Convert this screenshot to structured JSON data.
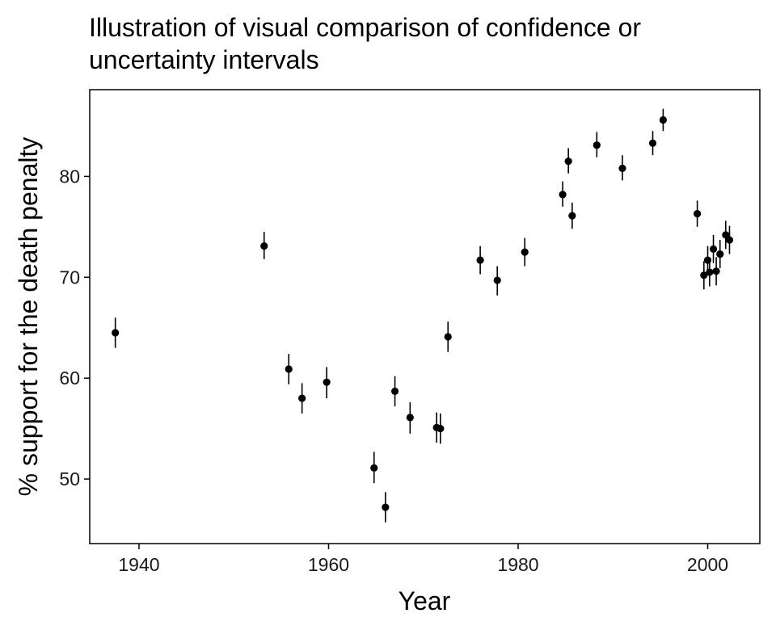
{
  "chart_data": {
    "type": "scatter",
    "title_lines": [
      "Illustration of visual comparison of confidence or",
      "uncertainty intervals"
    ],
    "xlabel": "Year",
    "ylabel": "% support for the death penalty",
    "x_ticks": [
      1940,
      1960,
      1980,
      2000
    ],
    "y_ticks": [
      50,
      60,
      70,
      80
    ],
    "xlim": [
      1934.8,
      2005.5
    ],
    "ylim": [
      43.6,
      88.6
    ],
    "grid": false,
    "error_bars": true,
    "point_color": "#000000",
    "points": [
      {
        "x": 1937.5,
        "y": 64.5,
        "lo": 63.0,
        "hi": 66.0
      },
      {
        "x": 1953.2,
        "y": 73.1,
        "lo": 71.8,
        "hi": 74.5
      },
      {
        "x": 1955.8,
        "y": 60.9,
        "lo": 59.4,
        "hi": 62.4
      },
      {
        "x": 1957.2,
        "y": 58.0,
        "lo": 56.5,
        "hi": 59.5
      },
      {
        "x": 1959.8,
        "y": 59.6,
        "lo": 58.0,
        "hi": 61.1
      },
      {
        "x": 1964.8,
        "y": 51.1,
        "lo": 49.6,
        "hi": 52.7
      },
      {
        "x": 1966.0,
        "y": 47.2,
        "lo": 45.7,
        "hi": 48.7
      },
      {
        "x": 1967.0,
        "y": 58.7,
        "lo": 57.2,
        "hi": 60.2
      },
      {
        "x": 1968.6,
        "y": 56.1,
        "lo": 54.5,
        "hi": 57.6
      },
      {
        "x": 1971.4,
        "y": 55.1,
        "lo": 53.6,
        "hi": 56.6
      },
      {
        "x": 1971.8,
        "y": 55.0,
        "lo": 53.5,
        "hi": 56.5
      },
      {
        "x": 1972.6,
        "y": 64.1,
        "lo": 62.6,
        "hi": 65.6
      },
      {
        "x": 1976.0,
        "y": 71.7,
        "lo": 70.3,
        "hi": 73.1
      },
      {
        "x": 1977.8,
        "y": 69.7,
        "lo": 68.2,
        "hi": 71.1
      },
      {
        "x": 1980.7,
        "y": 72.5,
        "lo": 71.1,
        "hi": 73.9
      },
      {
        "x": 1984.7,
        "y": 78.2,
        "lo": 77.0,
        "hi": 79.5
      },
      {
        "x": 1985.3,
        "y": 81.5,
        "lo": 80.3,
        "hi": 82.8
      },
      {
        "x": 1985.7,
        "y": 76.1,
        "lo": 74.8,
        "hi": 77.4
      },
      {
        "x": 1988.3,
        "y": 83.1,
        "lo": 81.9,
        "hi": 84.4
      },
      {
        "x": 1991.0,
        "y": 80.8,
        "lo": 79.6,
        "hi": 82.1
      },
      {
        "x": 1994.2,
        "y": 83.3,
        "lo": 82.1,
        "hi": 84.5
      },
      {
        "x": 1995.3,
        "y": 85.6,
        "lo": 84.5,
        "hi": 86.7
      },
      {
        "x": 1998.9,
        "y": 76.3,
        "lo": 75.0,
        "hi": 77.6
      },
      {
        "x": 1999.6,
        "y": 70.2,
        "lo": 68.8,
        "hi": 71.6
      },
      {
        "x": 2000.0,
        "y": 71.7,
        "lo": 70.3,
        "hi": 73.1
      },
      {
        "x": 2000.2,
        "y": 70.5,
        "lo": 69.1,
        "hi": 71.9
      },
      {
        "x": 2000.6,
        "y": 72.8,
        "lo": 71.4,
        "hi": 74.2
      },
      {
        "x": 2000.9,
        "y": 70.6,
        "lo": 69.2,
        "hi": 72.0
      },
      {
        "x": 2001.3,
        "y": 72.3,
        "lo": 70.9,
        "hi": 73.7
      },
      {
        "x": 2001.9,
        "y": 74.2,
        "lo": 72.8,
        "hi": 75.6
      },
      {
        "x": 2002.3,
        "y": 73.7,
        "lo": 72.3,
        "hi": 75.1
      }
    ]
  }
}
